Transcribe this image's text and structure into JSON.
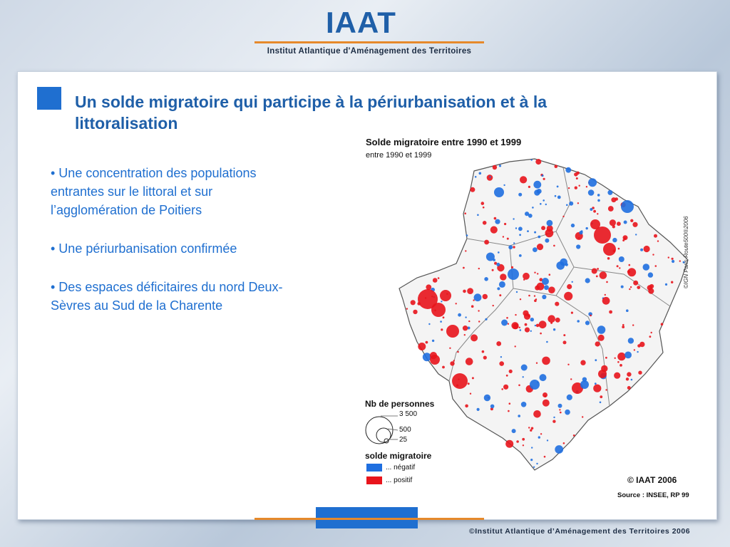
{
  "header": {
    "logo": "IAAT",
    "subtitle": "Institut Atlantique d'Aménagement des Territoires"
  },
  "slide": {
    "title": "Un solde migratoire qui participe à la périurbanisation et à la littoralisation",
    "bullets": [
      "• Une concentration des populations entrantes sur le littoral et sur l’agglomération de Poitiers",
      "• Une périurbanisation confirmée",
      "• Des espaces déficitaires du nord Deux-Sèvres au Sud de la Charente"
    ]
  },
  "map": {
    "title": "Solde migratoire entre 1990 et 1999",
    "subtitle": "entre 1990 et 1999",
    "credit": "©IGN Paris-Route500®2006",
    "legend": {
      "size_title": "Nb de personnes",
      "size_values": [
        "3 500",
        "500",
        "25"
      ],
      "color_title": "solde migratoire",
      "negative_label": "... négatif",
      "positive_label": "... positif",
      "negative_color": "#1f6fe0",
      "positive_color": "#e8141c"
    },
    "copyright": "© IAAT 2006",
    "source": "Source : INSEE, RP 99"
  },
  "footer": {
    "text": "©Institut Atlantique d’Aménagement des Territoires 2006"
  }
}
